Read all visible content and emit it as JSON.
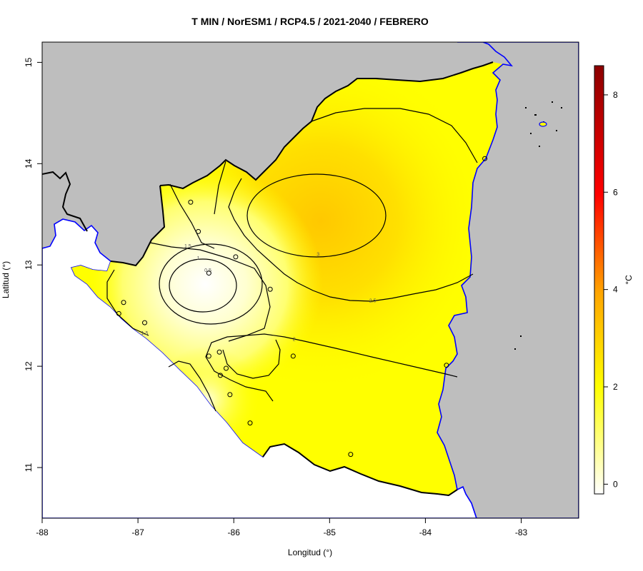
{
  "title": "T MIN / NorESM1 / RCP4.5 / 2021-2040 / FEBRERO",
  "xlabel": "Longitud (°)",
  "ylabel": "Latitud (°)",
  "colorbar_label": "°C",
  "colors": {
    "background": "#bebebe",
    "coast": "#0000ff",
    "border": "#000000",
    "contour": "#000000",
    "scale": [
      "#ffffff",
      "#ffff00",
      "#ffa500",
      "#ff0000",
      "#8b0000"
    ]
  },
  "chart_data": {
    "type": "heatmap",
    "xlim": [
      -88,
      -82.4
    ],
    "ylim": [
      10.5,
      15.2
    ],
    "x_ticks": [
      {
        "value": -88,
        "label": "-88"
      },
      {
        "value": -87,
        "label": "-87"
      },
      {
        "value": -86,
        "label": "-86"
      },
      {
        "value": -85,
        "label": "-85"
      },
      {
        "value": -84,
        "label": "-84"
      },
      {
        "value": -83,
        "label": "-83"
      }
    ],
    "y_ticks": [
      {
        "value": 11,
        "label": "11"
      },
      {
        "value": 12,
        "label": "12"
      },
      {
        "value": 13,
        "label": "13"
      },
      {
        "value": 14,
        "label": "14"
      },
      {
        "value": 15,
        "label": "15"
      }
    ],
    "colorbar": {
      "range": [
        -0.2,
        8.6
      ],
      "ticks": [
        {
          "value": 0,
          "label": "0"
        },
        {
          "value": 2,
          "label": "2"
        },
        {
          "value": 4,
          "label": "4"
        },
        {
          "value": 6,
          "label": "6"
        },
        {
          "value": 8,
          "label": "8"
        }
      ]
    },
    "contour_labels": [
      {
        "text": "0.5",
        "lon": -86.27,
        "lat": 12.93
      },
      {
        "text": "1",
        "lon": -86.37,
        "lat": 13.05
      },
      {
        "text": "1.5",
        "lon": -86.48,
        "lat": 13.17
      },
      {
        "text": "1.5",
        "lon": -86.93,
        "lat": 12.31
      },
      {
        "text": "2",
        "lon": -85.37,
        "lat": 12.25
      },
      {
        "text": "2.5",
        "lon": -84.55,
        "lat": 12.63
      },
      {
        "text": "3",
        "lon": -85.12,
        "lat": 13.09
      }
    ],
    "stations": [
      {
        "lon": -86.45,
        "lat": 13.62
      },
      {
        "lon": -86.37,
        "lat": 13.33
      },
      {
        "lon": -85.98,
        "lat": 13.08
      },
      {
        "lon": -86.26,
        "lat": 12.92
      },
      {
        "lon": -85.62,
        "lat": 12.76
      },
      {
        "lon": -87.15,
        "lat": 12.63
      },
      {
        "lon": -87.2,
        "lat": 12.52
      },
      {
        "lon": -86.93,
        "lat": 12.43
      },
      {
        "lon": -86.15,
        "lat": 12.14
      },
      {
        "lon": -86.26,
        "lat": 12.1
      },
      {
        "lon": -85.38,
        "lat": 12.1
      },
      {
        "lon": -86.08,
        "lat": 11.98
      },
      {
        "lon": -86.14,
        "lat": 11.91
      },
      {
        "lon": -86.04,
        "lat": 11.72
      },
      {
        "lon": -85.83,
        "lat": 11.44
      },
      {
        "lon": -84.78,
        "lat": 11.13
      },
      {
        "lon": -83.78,
        "lat": 12.01
      },
      {
        "lon": -83.38,
        "lat": 14.05
      }
    ]
  }
}
